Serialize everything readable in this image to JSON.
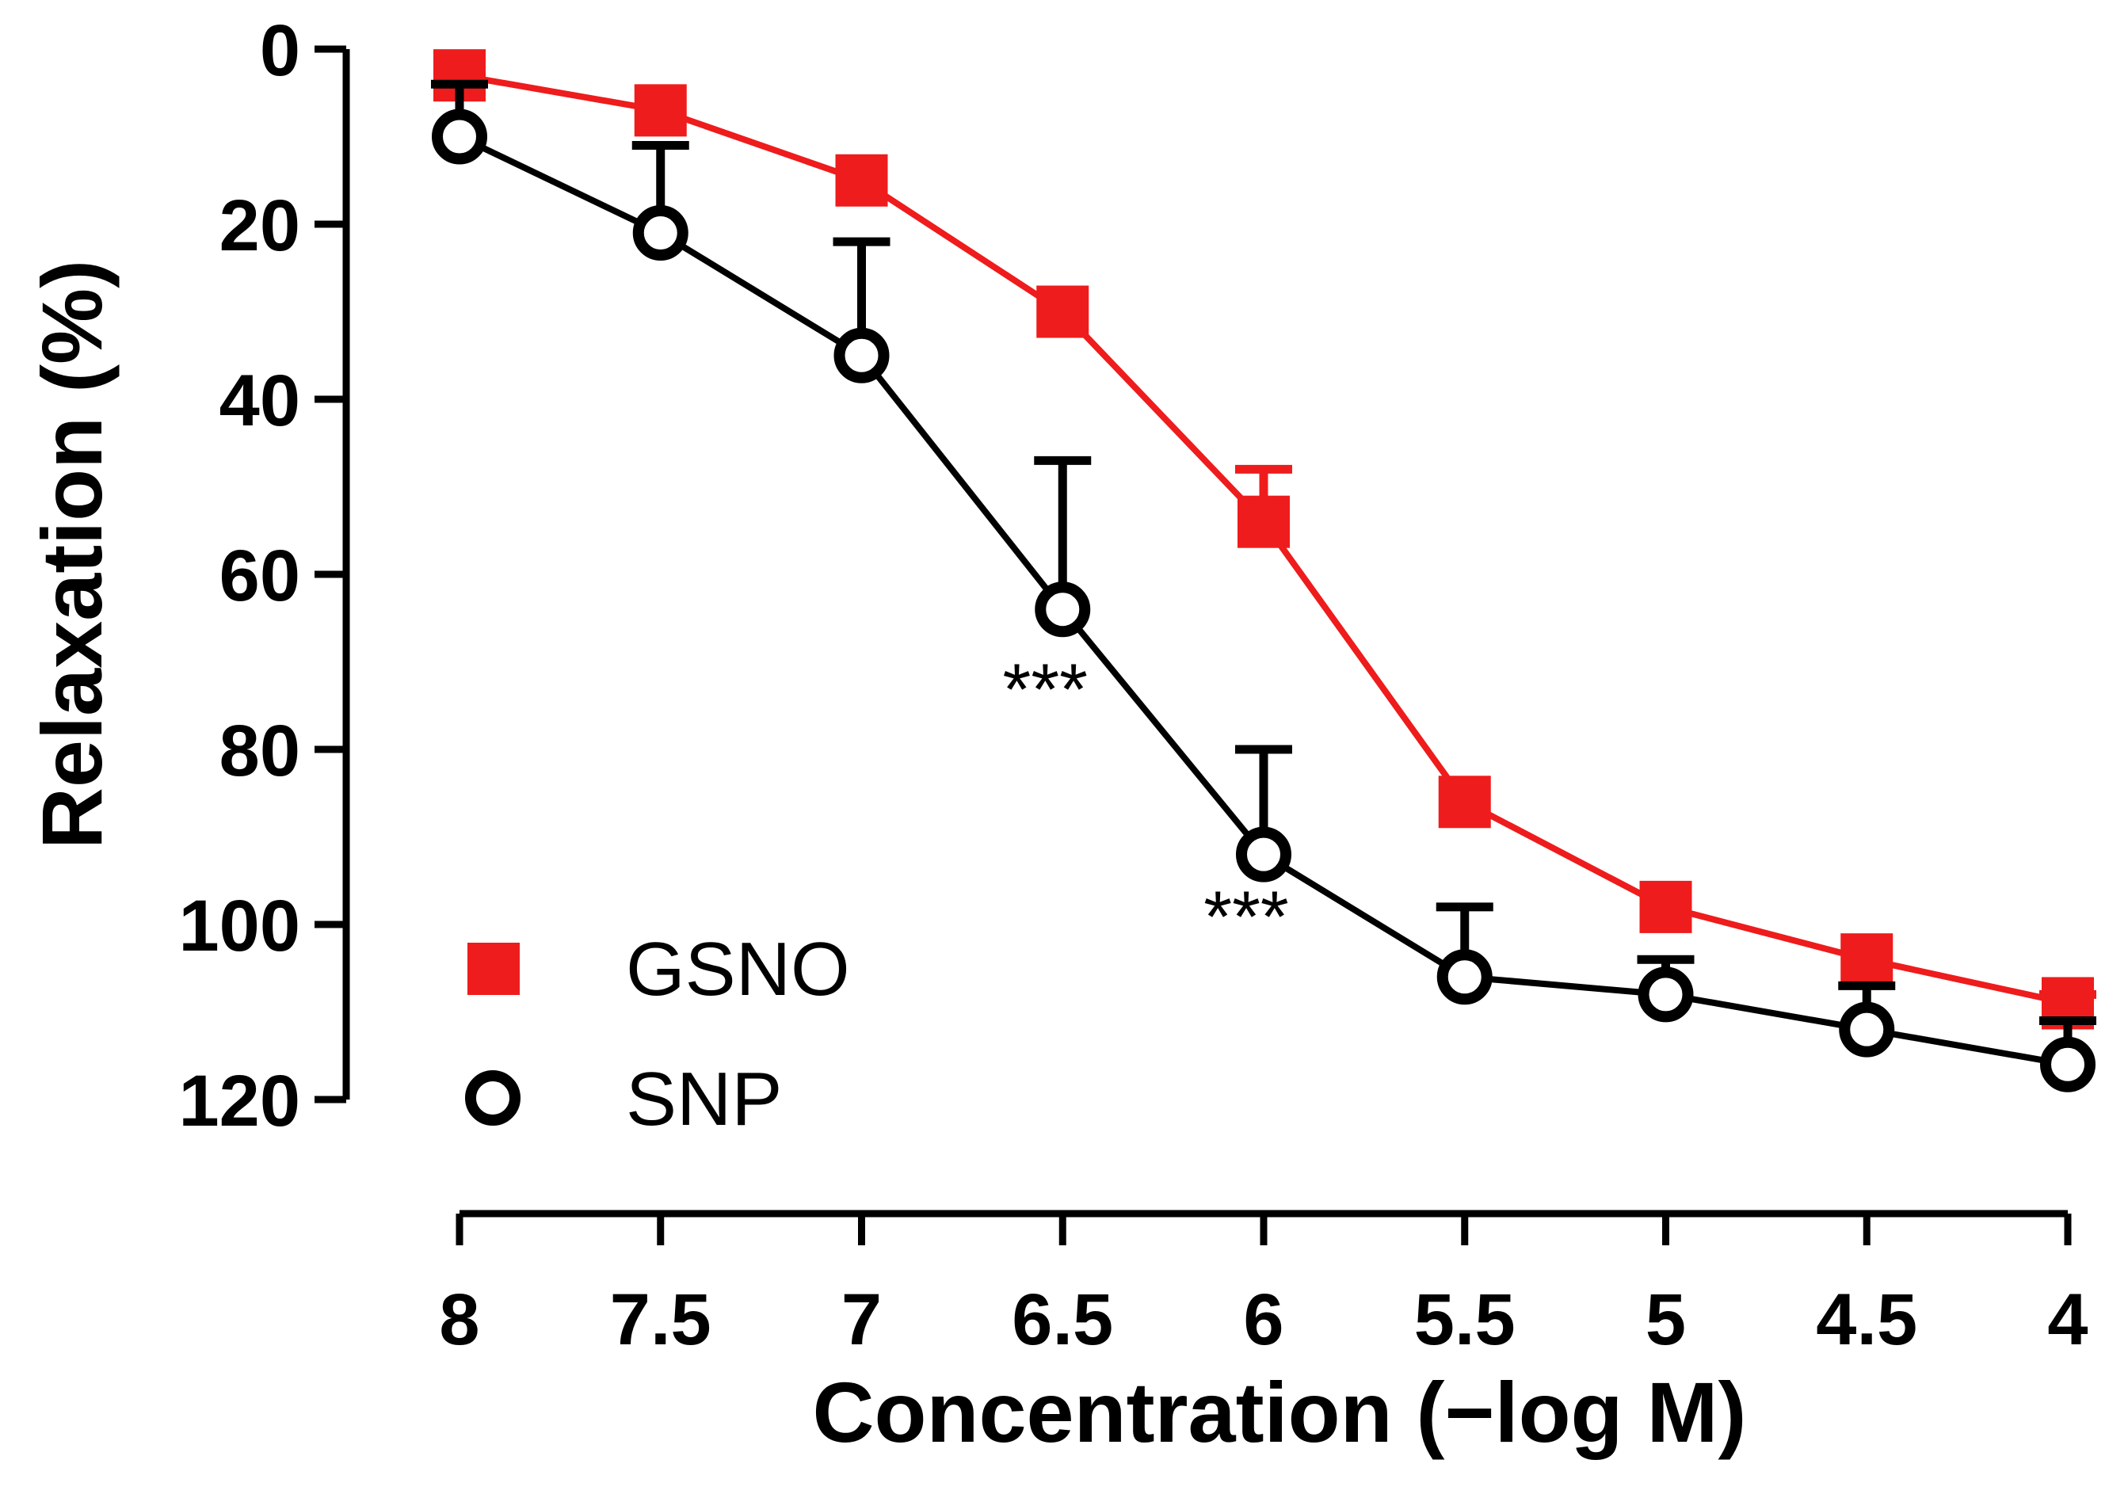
{
  "chart_data": {
    "type": "line",
    "title": "",
    "xlabel": "Concentration (−log M)",
    "ylabel": "Relaxation (%)",
    "x_inverted": true,
    "y_inverted": true,
    "xlim": [
      8,
      4
    ],
    "ylim": [
      0,
      120
    ],
    "x": [
      8,
      7.5,
      7,
      6.5,
      6,
      5.5,
      5,
      4.5,
      4
    ],
    "x_tick_labels": [
      "8",
      "7.5",
      "7",
      "6.5",
      "6",
      "5.5",
      "5",
      "4.5",
      "4"
    ],
    "y_ticks": [
      0,
      20,
      40,
      60,
      80,
      100,
      120
    ],
    "y_tick_labels": [
      "0",
      "20",
      "40",
      "60",
      "80",
      "100",
      "120"
    ],
    "legend_position": "bottom-left",
    "series": [
      {
        "name": "GSNO",
        "color": "#ee1c1c",
        "marker": "filled-square",
        "values": [
          3,
          7,
          15,
          30,
          54,
          86,
          98,
          104,
          109
        ],
        "error_top": [
          null,
          null,
          null,
          null,
          48,
          null,
          null,
          null,
          108
        ]
      },
      {
        "name": "SNP",
        "color": "#000000",
        "marker": "open-circle",
        "values": [
          10,
          21,
          35,
          64,
          92,
          106,
          108,
          112,
          116
        ],
        "error_top": [
          4,
          11,
          22,
          47,
          80,
          98,
          104,
          107,
          111
        ]
      }
    ],
    "annotations": [
      {
        "text": "***",
        "x": 6.5,
        "y": 76
      },
      {
        "text": "***",
        "x": 6.0,
        "y": 102
      }
    ]
  }
}
